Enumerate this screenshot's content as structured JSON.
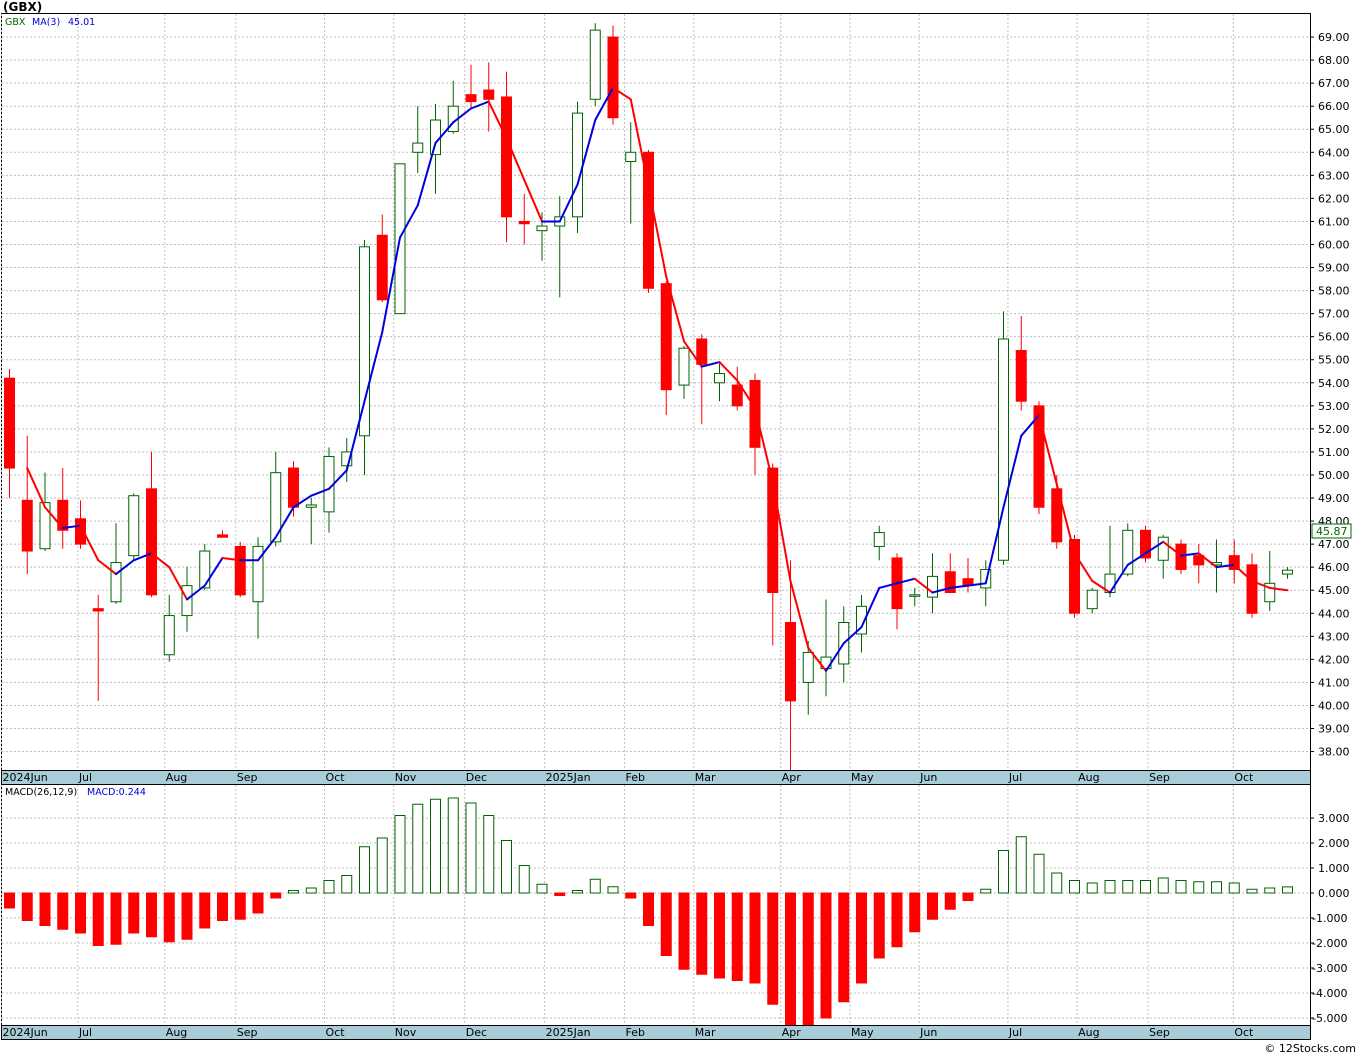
{
  "header": {
    "ticker": "(GBX)"
  },
  "price_legend": {
    "symbol": "GBX",
    "ma_label": "MA(3)",
    "ma_value": "45.01"
  },
  "macd_legend": {
    "label": "MACD(26,12,9)",
    "value_label": "MACD:0.244"
  },
  "last_price_label": "45.87",
  "credit": "© 12Stocks.com",
  "colors": {
    "up": "#006400",
    "down": "#ff0000",
    "ma_rising": "#0000dd",
    "ma_falling": "#ff0000",
    "grid": "#bfbfbf",
    "axis_strip": "#a9cdd8",
    "last_price": "#006400"
  },
  "chart_data": [
    {
      "type": "candlestick",
      "interval": "weekly",
      "ylim": [
        37.2,
        70
      ],
      "y_ticks": [
        "38.00",
        "39.00",
        "40.00",
        "41.00",
        "42.00",
        "43.00",
        "44.00",
        "45.00",
        "46.00",
        "47.00",
        "48.00",
        "49.00",
        "50.00",
        "51.00",
        "52.00",
        "53.00",
        "54.00",
        "55.00",
        "56.00",
        "57.00",
        "58.00",
        "59.00",
        "60.00",
        "61.00",
        "62.00",
        "63.00",
        "64.00",
        "65.00",
        "66.00",
        "67.00",
        "68.00",
        "69.00"
      ],
      "month_labels": [
        {
          "label": "2024Jun",
          "week": 0
        },
        {
          "label": "Jul",
          "week": 4.3
        },
        {
          "label": "Aug",
          "week": 9.2
        },
        {
          "label": "Sep",
          "week": 13.2
        },
        {
          "label": "Oct",
          "week": 18.2
        },
        {
          "label": "Nov",
          "week": 22.1
        },
        {
          "label": "Dec",
          "week": 26.1
        },
        {
          "label": "2025Jan",
          "week": 30.6
        },
        {
          "label": "Feb",
          "week": 35.1
        },
        {
          "label": "Mar",
          "week": 39
        },
        {
          "label": "Apr",
          "week": 43.9
        },
        {
          "label": "May",
          "week": 47.8
        },
        {
          "label": "Jun",
          "week": 51.7
        },
        {
          "label": "Jul",
          "week": 56.7
        },
        {
          "label": "Aug",
          "week": 60.6
        },
        {
          "label": "Sep",
          "week": 64.6
        },
        {
          "label": "Oct",
          "week": 69.4
        }
      ],
      "candles": [
        {
          "o": 54.2,
          "h": 54.6,
          "l": 49.0,
          "c": 50.3
        },
        {
          "o": 48.9,
          "h": 51.7,
          "l": 45.7,
          "c": 46.7
        },
        {
          "o": 46.8,
          "h": 50.1,
          "l": 46.7,
          "c": 48.8
        },
        {
          "o": 48.9,
          "h": 50.3,
          "l": 46.8,
          "c": 47.6
        },
        {
          "o": 48.1,
          "h": 48.9,
          "l": 46.8,
          "c": 47.0
        },
        {
          "o": 44.2,
          "h": 44.8,
          "l": 40.2,
          "c": 44.1
        },
        {
          "o": 44.5,
          "h": 47.9,
          "l": 44.4,
          "c": 46.2
        },
        {
          "o": 46.5,
          "h": 49.2,
          "l": 46.3,
          "c": 49.1
        },
        {
          "o": 49.4,
          "h": 51.0,
          "l": 44.7,
          "c": 44.8
        },
        {
          "o": 42.2,
          "h": 44.8,
          "l": 41.9,
          "c": 43.9
        },
        {
          "o": 43.9,
          "h": 46.0,
          "l": 43.2,
          "c": 45.2
        },
        {
          "o": 45.1,
          "h": 47.0,
          "l": 45.0,
          "c": 46.7
        },
        {
          "o": 47.4,
          "h": 47.6,
          "l": 47.3,
          "c": 47.3
        },
        {
          "o": 46.9,
          "h": 47.1,
          "l": 44.7,
          "c": 44.8
        },
        {
          "o": 44.5,
          "h": 47.3,
          "l": 42.9,
          "c": 46.9
        },
        {
          "o": 47.1,
          "h": 51.0,
          "l": 46.9,
          "c": 50.1
        },
        {
          "o": 50.3,
          "h": 50.6,
          "l": 48.2,
          "c": 48.6
        },
        {
          "o": 48.6,
          "h": 49.0,
          "l": 47.0,
          "c": 48.7
        },
        {
          "o": 48.4,
          "h": 51.2,
          "l": 47.5,
          "c": 50.8
        },
        {
          "o": 50.4,
          "h": 51.6,
          "l": 49.7,
          "c": 51.0
        },
        {
          "o": 51.7,
          "h": 60.2,
          "l": 50.0,
          "c": 59.9
        },
        {
          "o": 60.4,
          "h": 61.3,
          "l": 57.5,
          "c": 57.6
        },
        {
          "o": 57.0,
          "h": 63.2,
          "l": 57.0,
          "c": 63.5
        },
        {
          "o": 64.0,
          "h": 66.0,
          "l": 63.1,
          "c": 64.4
        },
        {
          "o": 63.9,
          "h": 66.1,
          "l": 62.2,
          "c": 65.4
        },
        {
          "o": 64.9,
          "h": 67.1,
          "l": 64.8,
          "c": 66.0
        },
        {
          "o": 66.5,
          "h": 67.8,
          "l": 65.9,
          "c": 66.2
        },
        {
          "o": 66.7,
          "h": 67.9,
          "l": 64.9,
          "c": 66.3
        },
        {
          "o": 66.4,
          "h": 67.5,
          "l": 60.1,
          "c": 61.2
        },
        {
          "o": 61.0,
          "h": 62.2,
          "l": 60.0,
          "c": 60.9
        },
        {
          "o": 60.6,
          "h": 61.4,
          "l": 59.3,
          "c": 60.8
        },
        {
          "o": 60.8,
          "h": 62.1,
          "l": 57.7,
          "c": 61.2
        },
        {
          "o": 61.2,
          "h": 66.2,
          "l": 60.5,
          "c": 65.7
        },
        {
          "o": 66.3,
          "h": 69.6,
          "l": 66.0,
          "c": 69.3
        },
        {
          "o": 69.0,
          "h": 69.5,
          "l": 65.2,
          "c": 65.5
        },
        {
          "o": 63.6,
          "h": 65.3,
          "l": 60.9,
          "c": 64.0
        },
        {
          "o": 64.0,
          "h": 64.1,
          "l": 57.9,
          "c": 58.1
        },
        {
          "o": 58.3,
          "h": 58.4,
          "l": 52.6,
          "c": 53.7
        },
        {
          "o": 53.9,
          "h": 55.6,
          "l": 53.3,
          "c": 55.5
        },
        {
          "o": 55.9,
          "h": 56.1,
          "l": 52.2,
          "c": 54.8
        },
        {
          "o": 54.0,
          "h": 54.9,
          "l": 53.2,
          "c": 54.4
        },
        {
          "o": 53.9,
          "h": 54.7,
          "l": 52.8,
          "c": 53.0
        },
        {
          "o": 54.1,
          "h": 54.4,
          "l": 50.0,
          "c": 51.2
        },
        {
          "o": 50.3,
          "h": 50.5,
          "l": 42.6,
          "c": 44.9
        },
        {
          "o": 43.6,
          "h": 46.3,
          "l": 37.2,
          "c": 40.2
        },
        {
          "o": 41.0,
          "h": 42.8,
          "l": 39.6,
          "c": 42.3
        },
        {
          "o": 41.6,
          "h": 44.6,
          "l": 40.4,
          "c": 42.1
        },
        {
          "o": 41.8,
          "h": 44.3,
          "l": 41.0,
          "c": 43.6
        },
        {
          "o": 43.1,
          "h": 44.8,
          "l": 42.3,
          "c": 44.3
        },
        {
          "o": 46.9,
          "h": 47.8,
          "l": 46.3,
          "c": 47.5
        },
        {
          "o": 46.4,
          "h": 46.6,
          "l": 43.3,
          "c": 44.2
        },
        {
          "o": 44.8,
          "h": 45.1,
          "l": 44.3,
          "c": 44.8
        },
        {
          "o": 44.7,
          "h": 46.6,
          "l": 44.0,
          "c": 45.6
        },
        {
          "o": 45.8,
          "h": 46.6,
          "l": 45.0,
          "c": 44.9
        },
        {
          "o": 45.5,
          "h": 46.4,
          "l": 44.9,
          "c": 45.2
        },
        {
          "o": 45.1,
          "h": 46.3,
          "l": 44.3,
          "c": 45.9
        },
        {
          "o": 46.3,
          "h": 57.1,
          "l": 46.1,
          "c": 55.9
        },
        {
          "o": 55.4,
          "h": 56.9,
          "l": 52.8,
          "c": 53.2
        },
        {
          "o": 53.0,
          "h": 53.2,
          "l": 48.3,
          "c": 48.6
        },
        {
          "o": 49.4,
          "h": 50.0,
          "l": 46.8,
          "c": 47.1
        },
        {
          "o": 47.2,
          "h": 47.4,
          "l": 43.8,
          "c": 44.0
        },
        {
          "o": 44.2,
          "h": 45.1,
          "l": 44.0,
          "c": 45.0
        },
        {
          "o": 44.9,
          "h": 47.8,
          "l": 44.7,
          "c": 45.7
        },
        {
          "o": 45.7,
          "h": 47.9,
          "l": 45.6,
          "c": 47.6
        },
        {
          "o": 47.6,
          "h": 47.8,
          "l": 46.2,
          "c": 46.4
        },
        {
          "o": 46.3,
          "h": 47.4,
          "l": 45.5,
          "c": 47.3
        },
        {
          "o": 47.0,
          "h": 47.2,
          "l": 45.7,
          "c": 45.9
        },
        {
          "o": 46.5,
          "h": 47.0,
          "l": 45.3,
          "c": 46.1
        },
        {
          "o": 46.1,
          "h": 47.2,
          "l": 44.9,
          "c": 46.2
        },
        {
          "o": 46.5,
          "h": 47.2,
          "l": 45.3,
          "c": 45.9
        },
        {
          "o": 46.1,
          "h": 46.6,
          "l": 43.8,
          "c": 44.0
        },
        {
          "o": 44.5,
          "h": 46.7,
          "l": 44.1,
          "c": 45.3
        },
        {
          "o": 45.7,
          "h": 46.0,
          "l": 45.5,
          "c": 45.87
        }
      ],
      "ma3": [
        null,
        50.3,
        48.6,
        47.7,
        47.8,
        46.3,
        45.7,
        46.3,
        46.6,
        46.0,
        44.6,
        45.2,
        46.4,
        46.3,
        46.3,
        47.3,
        48.6,
        49.1,
        49.4,
        50.2,
        53.2,
        56.2,
        60.3,
        61.7,
        64.4,
        65.3,
        65.9,
        66.2,
        64.6,
        62.8,
        61.0,
        61.0,
        62.6,
        65.4,
        66.8,
        66.3,
        62.5,
        58.6,
        55.8,
        54.7,
        54.9,
        54.1,
        52.9,
        49.7,
        45.4,
        42.5,
        41.5,
        42.7,
        43.4,
        45.1,
        45.3,
        45.5,
        44.9,
        45.1,
        45.2,
        45.3,
        48.6,
        51.7,
        52.6,
        49.6,
        46.6,
        45.4,
        44.9,
        46.1,
        46.6,
        47.1,
        46.5,
        46.6,
        46.0,
        46.1,
        45.4,
        45.1,
        45.0
      ]
    },
    {
      "type": "bar",
      "name": "MACD(26,12,9)",
      "ylim": [
        -5.3,
        3.75
      ],
      "y_ticks": [
        "3.000",
        "2.000",
        "1.000",
        "0.000",
        "-1.000",
        "-2.000",
        "-3.000",
        "-4.000",
        "-5.000"
      ],
      "values": [
        -0.6,
        -1.1,
        -1.3,
        -1.45,
        -1.6,
        -2.1,
        -2.05,
        -1.6,
        -1.75,
        -1.95,
        -1.85,
        -1.4,
        -1.1,
        -1.05,
        -0.8,
        -0.2,
        0.1,
        0.2,
        0.5,
        0.7,
        1.85,
        2.2,
        3.1,
        3.55,
        3.75,
        3.8,
        3.6,
        3.1,
        2.1,
        1.1,
        0.35,
        -0.1,
        0.1,
        0.55,
        0.25,
        -0.2,
        -1.3,
        -2.5,
        -3.05,
        -3.25,
        -3.4,
        -3.5,
        -3.6,
        -4.45,
        -5.3,
        -5.3,
        -5.0,
        -4.35,
        -3.6,
        -2.6,
        -2.15,
        -1.55,
        -1.05,
        -0.65,
        -0.3,
        0.15,
        1.7,
        2.25,
        1.55,
        0.8,
        0.5,
        0.4,
        0.5,
        0.5,
        0.5,
        0.6,
        0.5,
        0.45,
        0.45,
        0.4,
        0.15,
        0.2,
        0.244
      ]
    }
  ]
}
